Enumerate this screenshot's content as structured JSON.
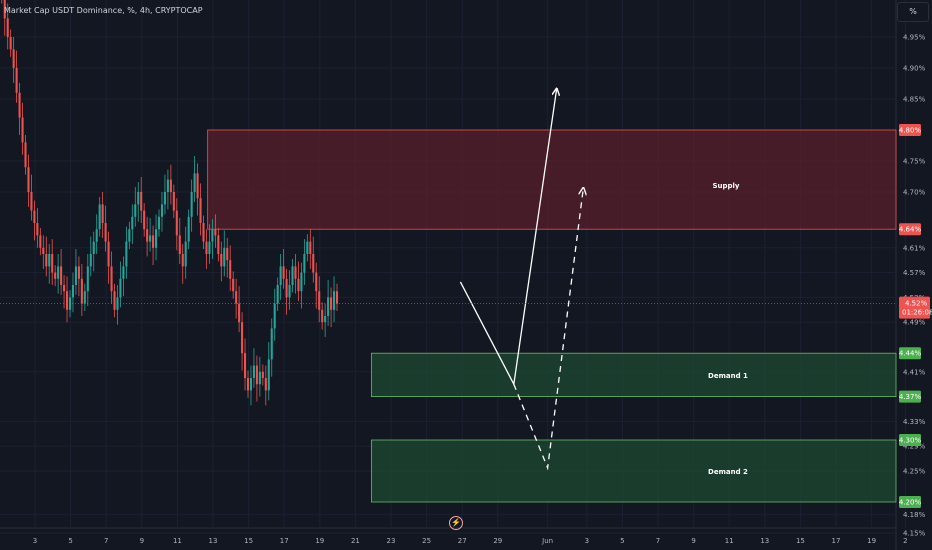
{
  "header": {
    "title": "Market Cap USDT Dominance, %, 4h, CRYPTOCAP",
    "scale_button": "%"
  },
  "colors": {
    "background": "#131722",
    "up": "#26a69a",
    "down": "#ef5350",
    "supply_fill": "#5a1f2c",
    "demand_fill": "#1e4a32",
    "arrow": "#ffffff"
  },
  "footer": {
    "event_icon": "lightning-icon"
  },
  "chart_data": {
    "type": "candlestick",
    "title": "Market Cap USDT Dominance, %, 4h, CRYPTOCAP",
    "y_unit": "%",
    "ylim": [
      4.13,
      5.0
    ],
    "y_ticks": [
      "4.95%",
      "4.90%",
      "4.85%",
      "4.75%",
      "4.70%",
      "4.61%",
      "4.57%",
      "4.53%",
      "4.49%",
      "4.41%",
      "4.33%",
      "4.29%",
      "4.25%",
      "4.18%",
      "4.15%"
    ],
    "x_ticks": [
      "3",
      "5",
      "7",
      "9",
      "11",
      "13",
      "15",
      "17",
      "19",
      "21",
      "23",
      "25",
      "27",
      "29",
      "Jun",
      "3",
      "5",
      "7",
      "9",
      "11",
      "13",
      "15",
      "17",
      "19",
      "2"
    ],
    "price_tags": [
      {
        "label": "4.80%",
        "value": 4.8,
        "color": "#ef5350"
      },
      {
        "label": "4.64%",
        "value": 4.64,
        "color": "#ef5350"
      },
      {
        "label": "4.44%",
        "value": 4.44,
        "color": "#4caf50"
      },
      {
        "label": "4.37%",
        "value": 4.37,
        "color": "#4caf50"
      },
      {
        "label": "4.30%",
        "value": 4.3,
        "color": "#4caf50"
      },
      {
        "label": "4.20%",
        "value": 4.2,
        "color": "#4caf50"
      }
    ],
    "last_price": {
      "label": "4.52%",
      "countdown": "01:26:08",
      "value": 4.52
    },
    "zones": [
      {
        "name": "Supply",
        "low": 4.64,
        "high": 4.8,
        "start_day": 12.7
      },
      {
        "name": "Demand 1",
        "low": 4.37,
        "high": 4.44,
        "start_day": 21.9
      },
      {
        "name": "Demand 2",
        "low": 4.2,
        "high": 4.3,
        "start_day": 21.9
      }
    ],
    "projections": [
      {
        "style": "solid",
        "points": [
          [
            26.9,
            4.555
          ],
          [
            29.9,
            4.39
          ],
          [
            32.3,
            4.865
          ]
        ]
      },
      {
        "style": "dashed",
        "points": [
          [
            29.9,
            4.39
          ],
          [
            31.8,
            4.255
          ],
          [
            33.8,
            4.705
          ]
        ]
      }
    ],
    "closes": [
      5.1,
      5.06,
      5.02,
      4.98,
      4.95,
      4.93,
      4.9,
      4.86,
      4.82,
      4.78,
      4.74,
      4.7,
      4.67,
      4.65,
      4.63,
      4.61,
      4.6,
      4.58,
      4.6,
      4.57,
      4.56,
      4.58,
      4.55,
      4.54,
      4.51,
      4.53,
      4.55,
      4.58,
      4.56,
      4.52,
      4.54,
      4.58,
      4.6,
      4.62,
      4.64,
      4.68,
      4.65,
      4.62,
      4.58,
      4.54,
      4.51,
      4.53,
      4.56,
      4.58,
      4.62,
      4.64,
      4.66,
      4.68,
      4.7,
      4.67,
      4.64,
      4.62,
      4.63,
      4.61,
      4.64,
      4.66,
      4.68,
      4.7,
      4.72,
      4.7,
      4.67,
      4.63,
      4.6,
      4.58,
      4.62,
      4.66,
      4.7,
      4.73,
      4.69,
      4.65,
      4.62,
      4.6,
      4.62,
      4.64,
      4.63,
      4.6,
      4.58,
      4.61,
      4.59,
      4.56,
      4.54,
      4.52,
      4.49,
      4.44,
      4.4,
      4.38,
      4.4,
      4.42,
      4.39,
      4.41,
      4.4,
      4.38,
      4.43,
      4.48,
      4.52,
      4.55,
      4.58,
      4.56,
      4.53,
      4.55,
      4.58,
      4.56,
      4.54,
      4.57,
      4.6,
      4.62,
      4.6,
      4.57,
      4.54,
      4.51,
      4.49,
      4.5,
      4.53,
      4.51,
      4.54,
      4.52
    ],
    "start_day": 0.8,
    "bars_per_day": 6
  }
}
